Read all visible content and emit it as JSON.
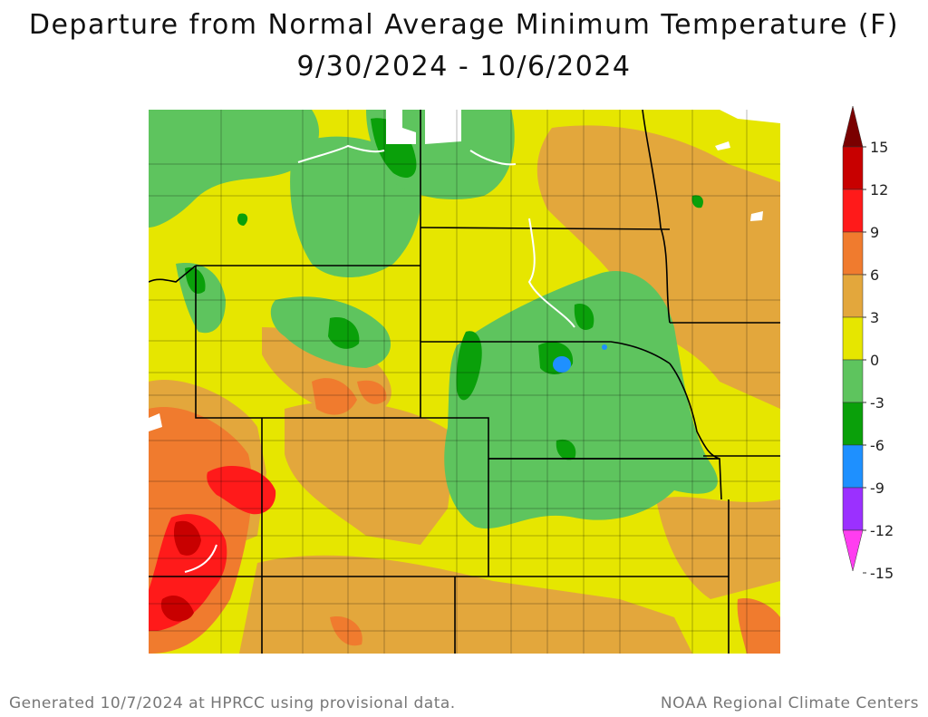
{
  "title": "Departure from Normal Average Minimum Temperature (F)",
  "subtitle": "9/30/2024 - 10/6/2024",
  "legend": {
    "labels": [
      "15",
      "12",
      "9",
      "6",
      "3",
      "0",
      "-3",
      "-6",
      "-9",
      "-12",
      "-15"
    ],
    "bins": [
      {
        "color": "#7a0000"
      },
      {
        "color": "#c80000"
      },
      {
        "color": "#ff1a1a"
      },
      {
        "color": "#f07b2e"
      },
      {
        "color": "#e3a73c"
      },
      {
        "color": "#e6e600"
      },
      {
        "color": "#5ec45e"
      },
      {
        "color": "#0aa00a"
      },
      {
        "color": "#1e90ff"
      },
      {
        "color": "#9b30ff"
      },
      {
        "color": "#ff3df0"
      }
    ]
  },
  "footer": {
    "left": "Generated 10/7/2024 at HPRCC using provisional data.",
    "right": "NOAA Regional Climate Centers"
  }
}
